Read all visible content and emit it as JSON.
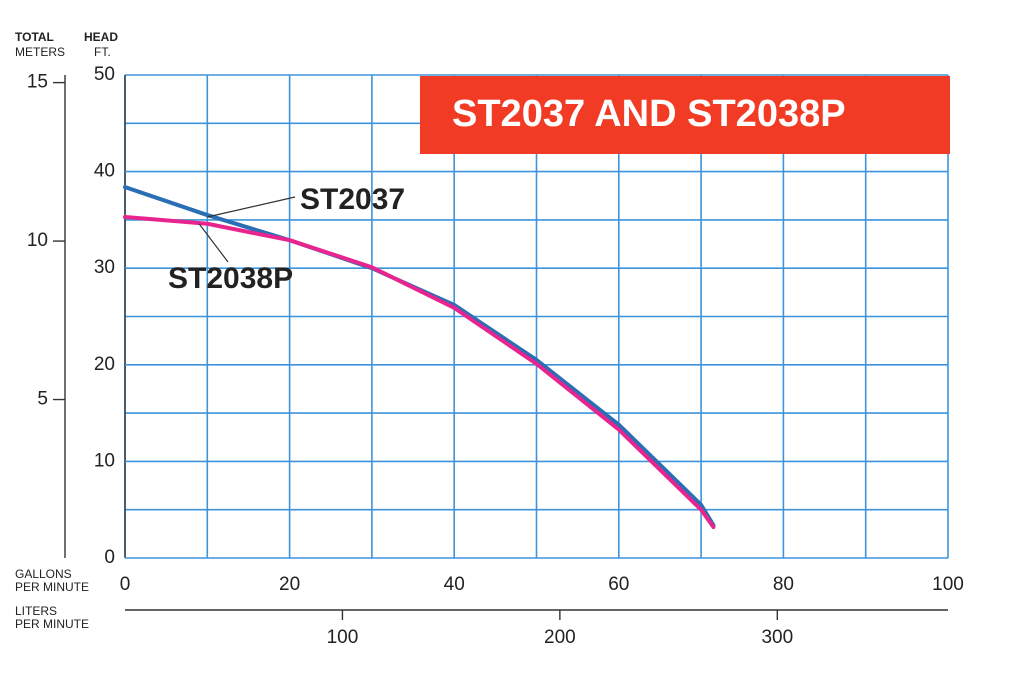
{
  "chart_data": {
    "type": "line",
    "title": "ST2037 AND ST2038P",
    "title_color": "#f23b24",
    "y_label": [
      "HEAD",
      "FT."
    ],
    "y2_label": [
      "TOTAL",
      "METERS"
    ],
    "x_label": [
      "GALLONS",
      "PER MINUTE"
    ],
    "x2_label": [
      "LITERS",
      "PER MINUTE"
    ],
    "x": [
      0,
      10,
      20,
      30,
      40,
      50,
      60,
      70,
      71.5
    ],
    "series": [
      {
        "name": "ST2037",
        "color": "#2a6fb5",
        "values": [
          38.4,
          35.5,
          32.9,
          30,
          26.2,
          20.5,
          13.8,
          5.5,
          3.4
        ]
      },
      {
        "name": "ST2038P",
        "color": "#e8258f",
        "values": [
          35.3,
          34.6,
          32.9,
          30.1,
          25.9,
          20.1,
          13.3,
          5,
          3.2
        ]
      }
    ],
    "xlim": [
      0,
      100
    ],
    "xticks": [
      0,
      20,
      40,
      60,
      80,
      100
    ],
    "ylim": [
      0,
      50
    ],
    "yticks": [
      0,
      10,
      20,
      30,
      40,
      50
    ],
    "y2lim": [
      0,
      15.24
    ],
    "y2ticks": [
      5,
      10,
      15
    ],
    "x2lim": [
      0,
      378.5
    ],
    "x2ticks": [
      100,
      200,
      300
    ],
    "grid": true,
    "xgrid_step": 10,
    "ygrid_step": 5
  }
}
